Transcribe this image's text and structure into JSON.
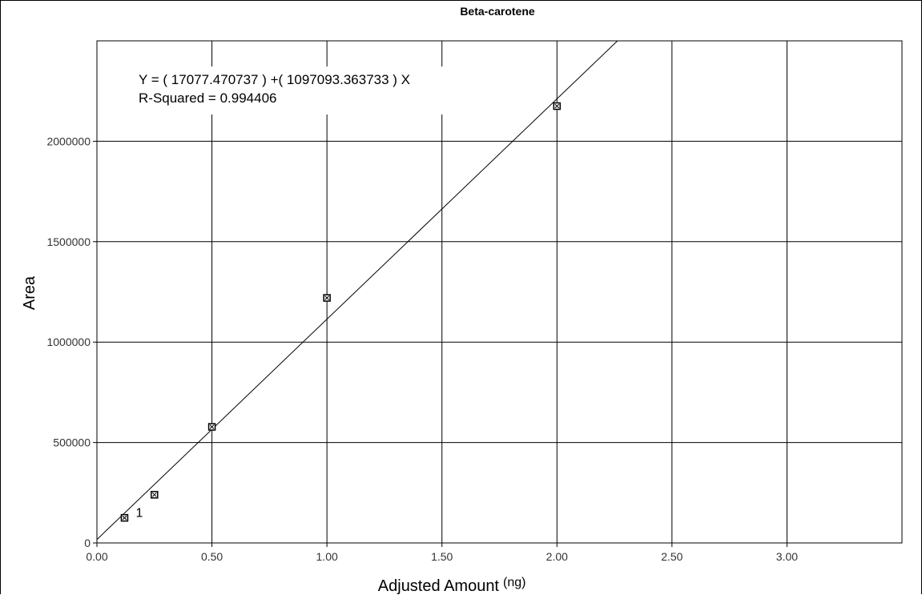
{
  "chart_data": {
    "type": "scatter",
    "title": "Beta-carotene",
    "xlabel": "Adjusted Amount",
    "xunit": "(ng)",
    "ylabel": "Area",
    "xlim": [
      0,
      3.5
    ],
    "ylim": [
      0,
      2500000
    ],
    "xticks": [
      0,
      0.5,
      1.0,
      1.5,
      2.0,
      2.5,
      3.0
    ],
    "xtick_labels": [
      "0.00",
      "0.50",
      "1.00",
      "1.50",
      "2.00",
      "2.50",
      "3.00"
    ],
    "yticks": [
      0,
      500000,
      1000000,
      1500000,
      2000000
    ],
    "ytick_labels": [
      "0",
      "500000",
      "1000000",
      "1500000",
      "2000000"
    ],
    "grid": true,
    "points": [
      {
        "x": 0.12,
        "y": 125000,
        "label": "1"
      },
      {
        "x": 0.25,
        "y": 240000,
        "label": ""
      },
      {
        "x": 0.5,
        "y": 578000,
        "label": ""
      },
      {
        "x": 1.0,
        "y": 1220000,
        "label": ""
      },
      {
        "x": 2.0,
        "y": 2175000,
        "label": ""
      }
    ],
    "fit": {
      "intercept": 17077.470737,
      "slope": 1097093.363733
    },
    "equation_text": "Y = ( 17077.470737 ) +( 1097093.363733 ) X",
    "r_squared_text": "R-Squared = 0.994406"
  }
}
